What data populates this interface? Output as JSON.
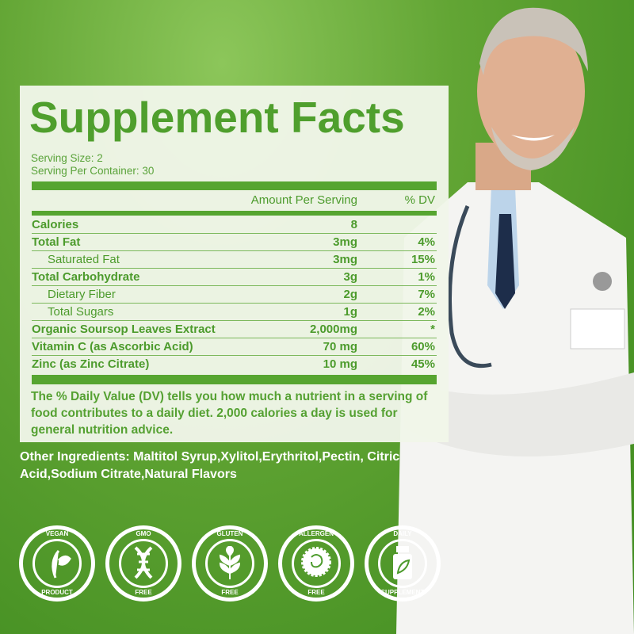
{
  "title": "Supplement Facts",
  "serving_size": "Serving Size: 2",
  "servings_per_container": "Serving Per Container: 30",
  "header": {
    "amount": "Amount Per Serving",
    "dv": "% DV"
  },
  "rows": [
    {
      "name": "Calories",
      "amount": "8",
      "dv": ""
    },
    {
      "name": "Total Fat",
      "amount": "3mg",
      "dv": "4%"
    },
    {
      "name": "Saturated Fat",
      "amount": "3mg",
      "dv": "15%"
    },
    {
      "name": "Total Carbohydrate",
      "amount": "3g",
      "dv": "1%"
    },
    {
      "name": "Dietary Fiber",
      "amount": "2g",
      "dv": "7%"
    },
    {
      "name": "Total Sugars",
      "amount": "1g",
      "dv": "2%"
    },
    {
      "name": "Organic Soursop Leaves Extract",
      "amount": "2,000mg",
      "dv": "*"
    },
    {
      "name": "Vitamin C (as Ascorbic Acid)",
      "amount": "70 mg",
      "dv": "60%"
    },
    {
      "name": "Zinc (as Zinc Citrate)",
      "amount": "10 mg",
      "dv": "45%"
    }
  ],
  "footnote": "The % Daily Value (DV) tells you how much a nutrient in a serving of food contributes to a daily diet. 2,000 calories a day is used for general nutrition advice.",
  "other_ingredients": "Other Ingredients: Maltitol Syrup,Xylitol,Erythritol,Pectin, Citric Acid,Sodium Citrate,Natural Flavors",
  "badges": [
    {
      "top": "VEGAN",
      "bottom": "PRODUCT",
      "icon": "leaf-icon"
    },
    {
      "top": "GMO",
      "bottom": "FREE",
      "icon": "dna-icon"
    },
    {
      "top": "GLUTEN",
      "bottom": "FREE",
      "icon": "wheat-icon"
    },
    {
      "top": "ALLERGEN",
      "bottom": "FREE",
      "icon": "allergen-icon"
    },
    {
      "top": "DAILY",
      "bottom": "SUPPLEMENT",
      "icon": "bottle-icon"
    }
  ],
  "colors": {
    "brand_green": "#4f9f2d",
    "panel": "#f0f6e9"
  }
}
